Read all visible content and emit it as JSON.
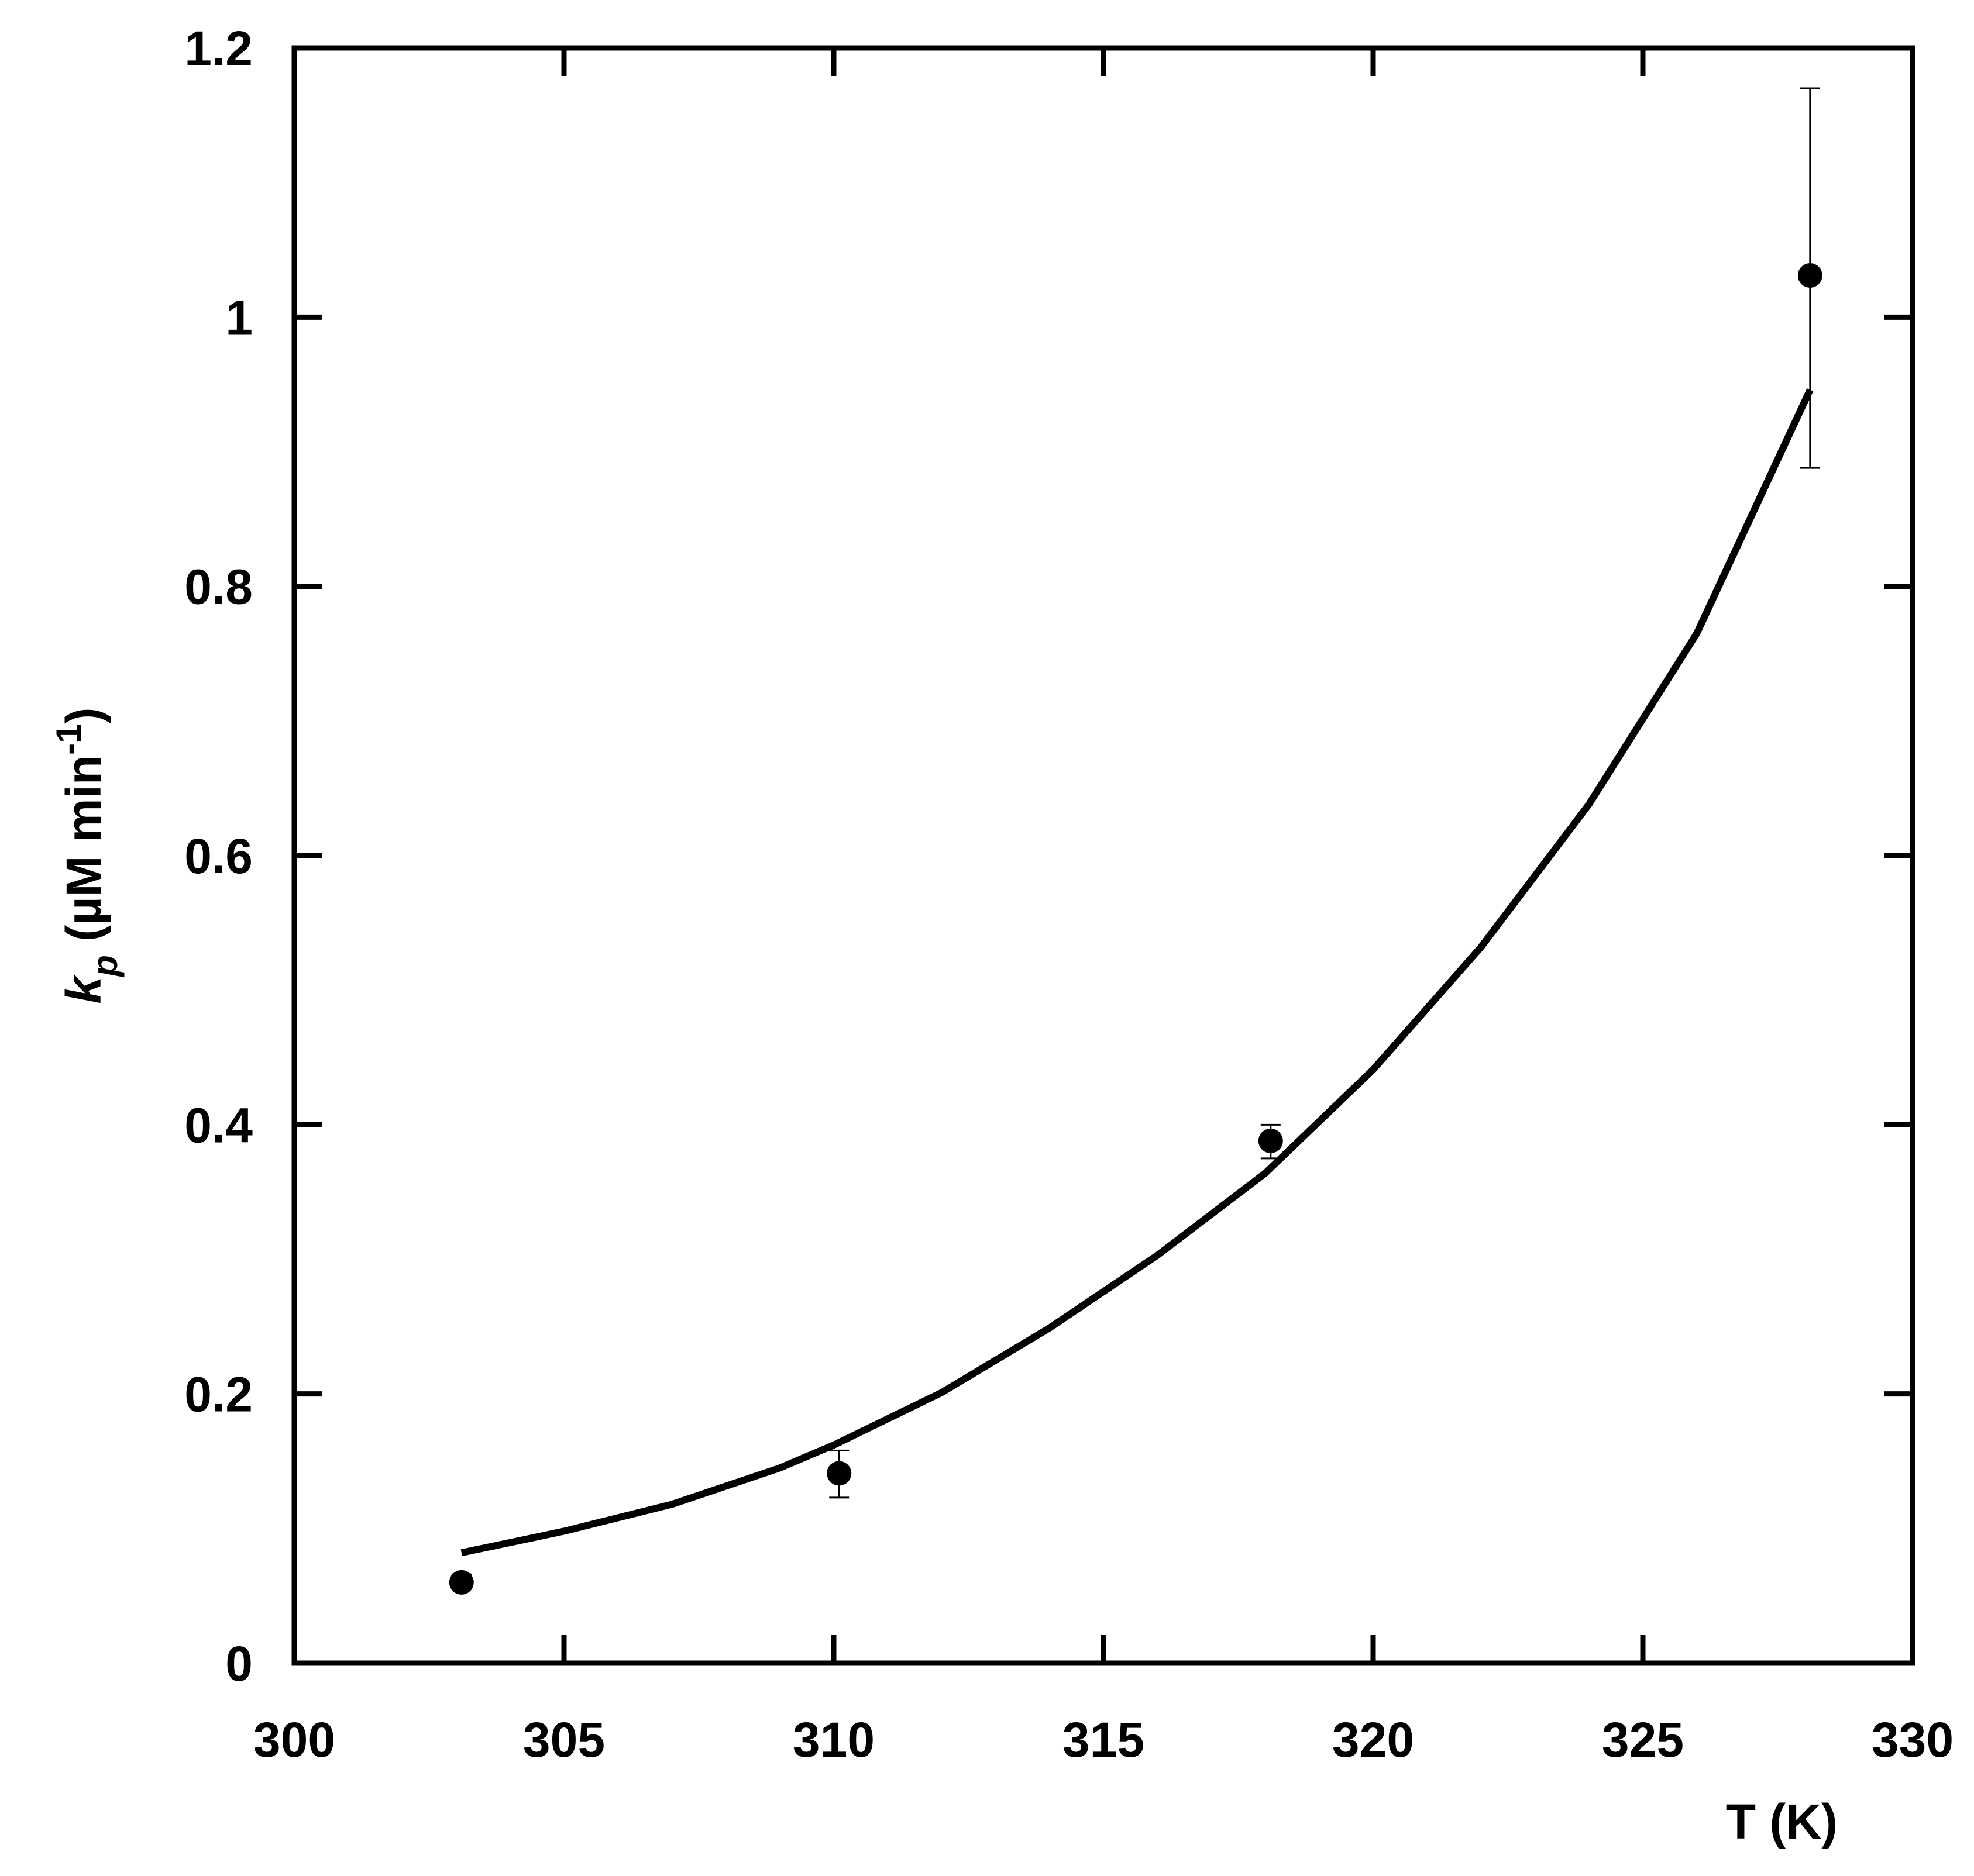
{
  "chart_data": {
    "type": "scatter",
    "xlabel": "T (K)",
    "ylabel": {
      "symbol": "k",
      "subscript": "p",
      "unit_open": " (µM min",
      "superscript": "-1",
      "unit_close": ")"
    },
    "xlim": [
      300,
      330
    ],
    "ylim": [
      0,
      1.2
    ],
    "x_ticks": [
      {
        "value": 300,
        "label": "300"
      },
      {
        "value": 305,
        "label": "305"
      },
      {
        "value": 310,
        "label": "310"
      },
      {
        "value": 315,
        "label": "315"
      },
      {
        "value": 320,
        "label": "320"
      },
      {
        "value": 325,
        "label": "325"
      },
      {
        "value": 330,
        "label": "330"
      }
    ],
    "y_ticks": [
      {
        "value": 0,
        "label": "0"
      },
      {
        "value": 0.2,
        "label": "0.2"
      },
      {
        "value": 0.4,
        "label": "0.4"
      },
      {
        "value": 0.6,
        "label": "0.6"
      },
      {
        "value": 0.8,
        "label": "0.8"
      },
      {
        "value": 1.0,
        "label": "1"
      },
      {
        "value": 1.2,
        "label": "1.2"
      }
    ],
    "grid": false,
    "legend": "none",
    "series": [
      {
        "kind": "points",
        "marker": "filled-circle",
        "color": "#000000",
        "x": [
          303.1,
          310.1,
          318.1,
          328.1
        ],
        "y": [
          0.06,
          0.141,
          0.388,
          1.031
        ],
        "err_low": [
          0.055,
          0.123,
          0.375,
          0.888
        ],
        "err_high": [
          0.066,
          0.158,
          0.4,
          1.17
        ]
      },
      {
        "kind": "fit-line",
        "color": "#000000",
        "x": [
          303.1,
          305,
          307,
          309,
          310,
          312,
          314,
          316,
          318,
          320,
          322,
          324,
          326,
          328.1
        ],
        "y": [
          0.082,
          0.098,
          0.118,
          0.145,
          0.162,
          0.201,
          0.249,
          0.303,
          0.364,
          0.441,
          0.532,
          0.638,
          0.765,
          0.946
        ]
      }
    ]
  }
}
